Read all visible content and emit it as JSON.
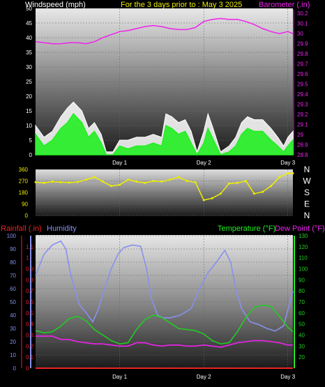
{
  "colors": {
    "wind_avg": "#22ee22",
    "wind_gust": "#ffffff",
    "barometer": "#ee22ee",
    "direction": "#eeee00",
    "humidity": "#8890ee",
    "temperature": "#22cc22",
    "dewpoint": "#ee22ee",
    "rainfall": "#ee2222",
    "title": "#eeee00",
    "axis_text": "#ffffff"
  },
  "chart_data": [
    {
      "type": "line",
      "title": "For the 3 days prior to : May 3 2025",
      "ylabel": "Windspeed (mph)",
      "y2label": "Barometer (.in)",
      "ylim": [
        0,
        50
      ],
      "y2lim": [
        28.8,
        30.25
      ],
      "xlim": [
        0,
        3.06
      ],
      "x_ticks": [
        "Day 1",
        "Day 2",
        "Day 3"
      ],
      "x_tick_values": [
        1,
        2,
        3
      ],
      "yticks": [
        0,
        5,
        10,
        15,
        20,
        25,
        30,
        35,
        40,
        45,
        50
      ],
      "y2ticks": [
        "28.8",
        "28.9",
        "29",
        "29.1",
        "29.2",
        "29.3",
        "29.4",
        "29.5",
        "29.6",
        "29.7",
        "29.8",
        "29.9",
        "30",
        "30.1",
        "30.2"
      ],
      "grid": true,
      "series": [
        {
          "name": "Windspeed (mph)",
          "x": [
            0,
            0.1,
            0.2,
            0.3,
            0.38,
            0.45,
            0.55,
            0.63,
            0.7,
            0.78,
            0.84,
            0.92,
            1.0,
            1.1,
            1.2,
            1.3,
            1.4,
            1.5,
            1.55,
            1.62,
            1.7,
            1.78,
            1.85,
            1.92,
            2.0,
            2.05,
            2.1,
            2.2,
            2.3,
            2.38,
            2.45,
            2.52,
            2.6,
            2.7,
            2.8,
            2.88,
            2.95,
            3.0,
            3.06
          ],
          "values": [
            7,
            3,
            5,
            9,
            11,
            14,
            11,
            6,
            8,
            4,
            0,
            0,
            3,
            2,
            3,
            3,
            4,
            3,
            10,
            9,
            7,
            8,
            4,
            0,
            4,
            9,
            6,
            0,
            1,
            3,
            7,
            9,
            8,
            8,
            5,
            3,
            1,
            3,
            5
          ]
        },
        {
          "name": "Gust (mph)",
          "x": [
            0,
            0.1,
            0.2,
            0.3,
            0.38,
            0.45,
            0.55,
            0.63,
            0.7,
            0.78,
            0.84,
            0.92,
            1.0,
            1.1,
            1.2,
            1.3,
            1.4,
            1.5,
            1.55,
            1.62,
            1.7,
            1.78,
            1.85,
            1.92,
            2.0,
            2.05,
            2.1,
            2.2,
            2.3,
            2.38,
            2.45,
            2.52,
            2.6,
            2.7,
            2.8,
            2.88,
            2.95,
            3.0,
            3.06
          ],
          "values": [
            10,
            6,
            8,
            13,
            16,
            18,
            15,
            9,
            11,
            7,
            1,
            1,
            5,
            5,
            6,
            6,
            7,
            6,
            14,
            13,
            11,
            12,
            8,
            1,
            8,
            14,
            10,
            1,
            3,
            6,
            11,
            13,
            12,
            12,
            9,
            6,
            3,
            6,
            8
          ]
        },
        {
          "name": "Barometer (.in)",
          "axis": "y2",
          "x": [
            0,
            0.1,
            0.2,
            0.3,
            0.4,
            0.5,
            0.6,
            0.7,
            0.8,
            0.9,
            1.0,
            1.1,
            1.2,
            1.3,
            1.4,
            1.5,
            1.6,
            1.7,
            1.8,
            1.9,
            2.0,
            2.1,
            2.2,
            2.3,
            2.4,
            2.5,
            2.6,
            2.7,
            2.8,
            2.9,
            3.0,
            3.06
          ],
          "values": [
            29.92,
            29.91,
            29.9,
            29.9,
            29.91,
            29.91,
            29.9,
            29.92,
            29.96,
            29.99,
            30.02,
            30.03,
            30.05,
            30.07,
            30.08,
            30.07,
            30.05,
            30.04,
            30.04,
            30.06,
            30.12,
            30.14,
            30.15,
            30.14,
            30.14,
            30.12,
            30.09,
            30.05,
            30.02,
            30.0,
            30.02,
            30.0
          ]
        }
      ]
    },
    {
      "type": "scatter",
      "ylim": [
        0,
        360
      ],
      "yticks": [
        0,
        90,
        180,
        270,
        360
      ],
      "compass_labels": [
        "N",
        "W",
        "S",
        "E",
        "N"
      ],
      "xlim": [
        0,
        3.06
      ],
      "series": [
        {
          "name": "Wind direction",
          "x": [
            0,
            0.1,
            0.2,
            0.3,
            0.4,
            0.5,
            0.6,
            0.7,
            0.8,
            0.9,
            1.0,
            1.1,
            1.2,
            1.3,
            1.4,
            1.5,
            1.6,
            1.7,
            1.8,
            1.9,
            2.0,
            2.1,
            2.2,
            2.3,
            2.4,
            2.5,
            2.6,
            2.7,
            2.8,
            2.9,
            3.0,
            3.06
          ],
          "values": [
            260,
            255,
            265,
            260,
            258,
            262,
            280,
            300,
            265,
            230,
            240,
            280,
            265,
            255,
            270,
            265,
            280,
            300,
            270,
            260,
            120,
            135,
            170,
            250,
            255,
            270,
            170,
            185,
            230,
            300,
            330,
            330
          ]
        }
      ]
    },
    {
      "type": "line",
      "ylabel_left": "Rainfall (.in)",
      "ylabel_left2": "Humidity",
      "ylabel_right": "Temperature (°F)",
      "ylabel_right2": "Dew Point (°F)",
      "rain_ylim": [
        0,
        1.2
      ],
      "humidity_ylim": [
        0,
        100
      ],
      "temp_ylim": [
        10,
        130
      ],
      "rain_ticks": [
        "0",
        "0.1",
        "0.2",
        "0.3",
        "0.4",
        "0.5",
        "0.6",
        "0.7",
        "0.8",
        "0.9",
        "1",
        "1.1"
      ],
      "humidity_ticks": [
        0,
        10,
        20,
        30,
        40,
        50,
        60,
        70,
        80,
        90,
        100
      ],
      "temp_ticks": [
        20,
        30,
        40,
        50,
        60,
        70,
        80,
        90,
        100,
        110,
        120,
        130
      ],
      "x_ticks": [
        "Day 1",
        "Day 2",
        "Day 3"
      ],
      "xlim": [
        0,
        3.06
      ],
      "series": [
        {
          "name": "Humidity",
          "axis": "humidity",
          "x": [
            0,
            0.1,
            0.2,
            0.3,
            0.36,
            0.42,
            0.52,
            0.6,
            0.68,
            0.75,
            0.82,
            0.9,
            0.98,
            1.05,
            1.15,
            1.25,
            1.32,
            1.38,
            1.45,
            1.52,
            1.6,
            1.72,
            1.85,
            1.95,
            2.05,
            2.15,
            2.25,
            2.32,
            2.38,
            2.45,
            2.55,
            2.65,
            2.75,
            2.85,
            2.95,
            3.06
          ],
          "values": [
            70,
            86,
            93,
            96,
            90,
            70,
            48,
            42,
            35,
            45,
            60,
            75,
            86,
            91,
            93,
            92,
            75,
            52,
            40,
            38,
            38,
            40,
            45,
            60,
            72,
            80,
            89,
            80,
            60,
            45,
            35,
            33,
            30,
            28,
            32,
            58
          ]
        },
        {
          "name": "Temperature (°F)",
          "axis": "temp",
          "x": [
            0,
            0.1,
            0.2,
            0.3,
            0.4,
            0.5,
            0.6,
            0.7,
            0.8,
            0.9,
            1.0,
            1.1,
            1.2,
            1.3,
            1.4,
            1.5,
            1.6,
            1.7,
            1.8,
            1.9,
            2.0,
            2.1,
            2.2,
            2.3,
            2.4,
            2.5,
            2.6,
            2.7,
            2.8,
            2.9,
            3.0,
            3.06
          ],
          "values": [
            44,
            42,
            43,
            48,
            55,
            57,
            53,
            45,
            40,
            35,
            32,
            33,
            45,
            54,
            58,
            56,
            51,
            46,
            45,
            44,
            41,
            35,
            32,
            33,
            43,
            56,
            65,
            67,
            66,
            57,
            47,
            43
          ]
        },
        {
          "name": "Dew Point (°F)",
          "axis": "temp",
          "x": [
            0,
            0.1,
            0.2,
            0.3,
            0.4,
            0.5,
            0.6,
            0.7,
            0.8,
            0.9,
            1.0,
            1.1,
            1.2,
            1.3,
            1.4,
            1.5,
            1.6,
            1.7,
            1.8,
            1.9,
            2.0,
            2.1,
            2.2,
            2.3,
            2.4,
            2.5,
            2.6,
            2.7,
            2.8,
            2.9,
            3.0,
            3.06
          ],
          "values": [
            39,
            39,
            39,
            36,
            36,
            34,
            33,
            32,
            32,
            31,
            30,
            30,
            33,
            33,
            31,
            30,
            31,
            31,
            30,
            30,
            31,
            30,
            29,
            31,
            33,
            34,
            35,
            35,
            34,
            33,
            31,
            31
          ]
        },
        {
          "name": "Rainfall (.in)",
          "axis": "rain",
          "x": [
            0,
            3.06
          ],
          "values": [
            0,
            0
          ]
        }
      ]
    }
  ]
}
